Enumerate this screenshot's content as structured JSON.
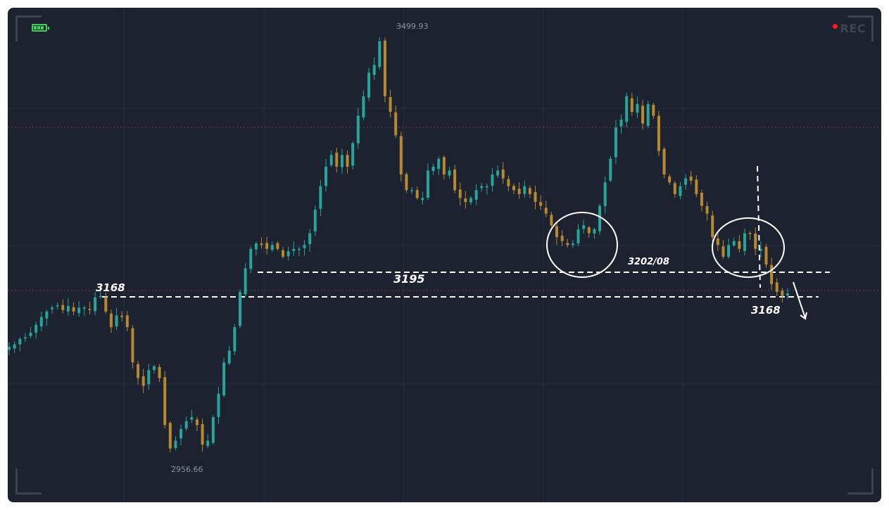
{
  "hud": {
    "rec_label": "REC",
    "battery_icon": "battery-full-icon",
    "rec_dot_icon": "record-dot-icon"
  },
  "colors": {
    "background": "#1c2230",
    "up": "#26a69a",
    "down": "#b8892f",
    "annotation": "#ffffff",
    "grid": "#263040",
    "ref_line": "#7a3a4a"
  },
  "chart_data": {
    "type": "candlestick",
    "ylim": [
      2940,
      3515
    ],
    "high_label": "3499.93",
    "low_label": "2956.66",
    "horizontal_lines": [
      {
        "value": 3195,
        "label": "3195"
      },
      {
        "value": 3168,
        "label": "3168"
      }
    ],
    "annotations": [
      "3168",
      "3195",
      "3202/08",
      "3168"
    ],
    "path": [
      3100,
      3103,
      3110,
      3112,
      3118,
      3128,
      3138,
      3145,
      3150,
      3153,
      3147,
      3152,
      3145,
      3150,
      3150,
      3147,
      3163,
      3165,
      3145,
      3125,
      3140,
      3138,
      3125,
      3080,
      3060,
      3050,
      3070,
      3075,
      3060,
      3000,
      2970,
      2980,
      2995,
      3005,
      3010,
      3000,
      2975,
      2980,
      3010,
      3040,
      3080,
      3095,
      3125,
      3170,
      3200,
      3225,
      3232,
      3230,
      3225,
      3230,
      3225,
      3215,
      3222,
      3225,
      3225,
      3230,
      3245,
      3275,
      3305,
      3330,
      3345,
      3330,
      3345,
      3330,
      3360,
      3395,
      3420,
      3450,
      3460,
      3490,
      3420,
      3400,
      3370,
      3320,
      3300,
      3300,
      3290,
      3290,
      3325,
      3330,
      3340,
      3320,
      3325,
      3300,
      3290,
      3285,
      3290,
      3300,
      3305,
      3305,
      3320,
      3325,
      3315,
      3305,
      3300,
      3295,
      3305,
      3295,
      3285,
      3280,
      3270,
      3255,
      3240,
      3235,
      3230,
      3232,
      3250,
      3255,
      3245,
      3250,
      3280,
      3310,
      3340,
      3380,
      3390,
      3420,
      3400,
      3410,
      3385,
      3410,
      3395,
      3350,
      3320,
      3310,
      3295,
      3305,
      3315,
      3312,
      3295,
      3280,
      3270,
      3240,
      3230,
      3215,
      3230,
      3235,
      3225,
      3245,
      3245,
      3225,
      3225,
      3205,
      3180,
      3170,
      3165,
      3168
    ]
  }
}
